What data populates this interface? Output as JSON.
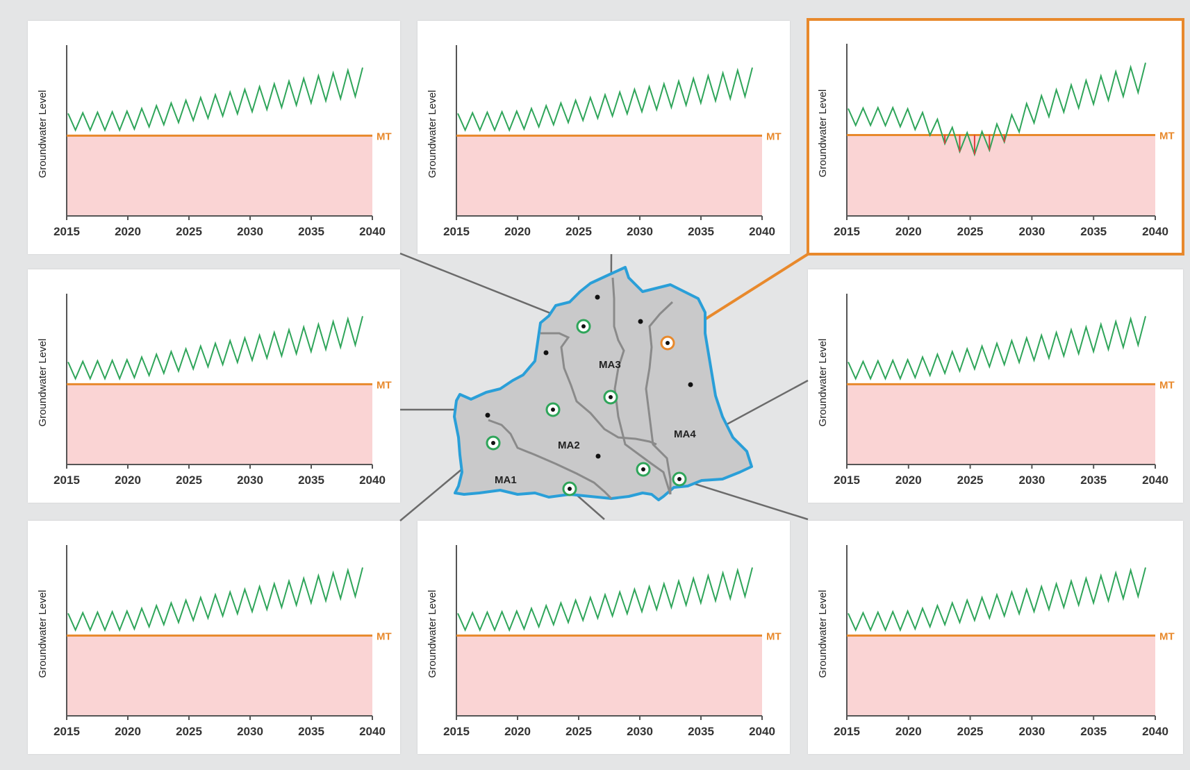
{
  "colors": {
    "background": "#e4e5e6",
    "panel": "#ffffff",
    "danger_zone": "#fad4d4",
    "threshold_line": "#e8892c",
    "level_ok": "#2fa55a",
    "level_below": "#e03c3c",
    "basin_fill": "#c9c9ca",
    "basin_outline": "#2a9fd8",
    "subbasin_line": "#8a8a8a",
    "well_ring": "#2fa55a",
    "highlight": "#e8892c"
  },
  "panel_common": {
    "ylabel": "Groundwater Level",
    "threshold_label": "MT",
    "x_ticks": [
      "2015",
      "2020",
      "2025",
      "2030",
      "2035",
      "2040"
    ]
  },
  "map": {
    "labels": [
      "MA1",
      "MA2",
      "MA3",
      "MA4"
    ]
  },
  "panels": [
    {
      "id": "top-left",
      "highlighted": false,
      "drops_below_mt": false
    },
    {
      "id": "top-middle",
      "highlighted": false,
      "drops_below_mt": false
    },
    {
      "id": "top-right",
      "highlighted": true,
      "drops_below_mt": true
    },
    {
      "id": "middle-left",
      "highlighted": false,
      "drops_below_mt": false
    },
    {
      "id": "middle-right",
      "highlighted": false,
      "drops_below_mt": false
    },
    {
      "id": "bottom-left",
      "highlighted": false,
      "drops_below_mt": false
    },
    {
      "id": "bottom-middle",
      "highlighted": false,
      "drops_below_mt": false
    },
    {
      "id": "bottom-right",
      "highlighted": false,
      "drops_below_mt": false
    }
  ]
}
